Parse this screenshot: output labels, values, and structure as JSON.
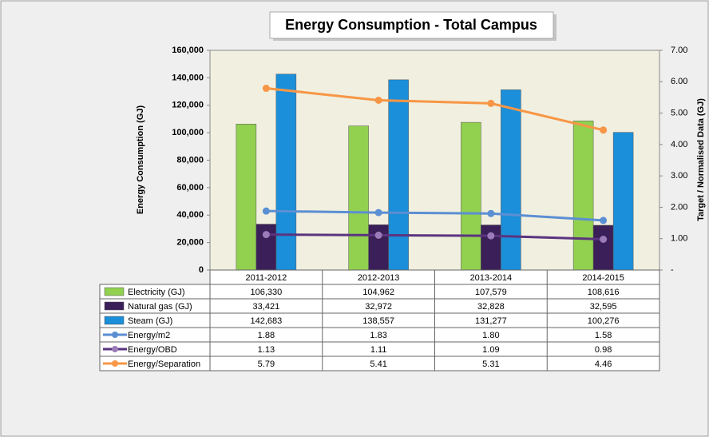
{
  "chart_data": {
    "type": "bar",
    "title": "Energy Consumption - Total Campus",
    "y_label": "Energy Consumption (GJ)",
    "y2_label": "Target / Normalised Data (GJ)",
    "categories": [
      "2011-2012",
      "2012-2013",
      "2013-2014",
      "2014-2015"
    ],
    "ylim": [
      0,
      160000
    ],
    "yticks": [
      0,
      {
        "value": 20000,
        "label": "20,000"
      },
      {
        "value": 40000,
        "label": "40,000"
      },
      {
        "value": 60000,
        "label": "60,000"
      },
      {
        "value": 80000,
        "label": "80,000"
      },
      {
        "value": 100000,
        "label": "100,000"
      },
      {
        "value": 120000,
        "label": "120,000"
      },
      {
        "value": 140000,
        "label": "140,000"
      },
      {
        "value": 160000,
        "label": "160,000"
      }
    ],
    "y2lim": [
      0,
      7
    ],
    "y2ticks": [
      {
        "value": 0,
        "label": "-"
      },
      {
        "value": 1,
        "label": "1.00"
      },
      {
        "value": 2,
        "label": "2.00"
      },
      {
        "value": 3,
        "label": "3.00"
      },
      {
        "value": 4,
        "label": "4.00"
      },
      {
        "value": 5,
        "label": "5.00"
      },
      {
        "value": 6,
        "label": "6.00"
      },
      {
        "value": 7,
        "label": "7.00"
      }
    ],
    "grid": false,
    "series": [
      {
        "name": "Electricity (GJ)",
        "type": "bar",
        "color": "#92d050",
        "values": [
          106330,
          104962,
          107579,
          108616
        ],
        "value_labels": [
          "106,330",
          "104,962",
          "107,579",
          "108,616"
        ]
      },
      {
        "name": "Natural gas (GJ)",
        "type": "bar",
        "color": "#3b1f58",
        "values": [
          33421,
          32972,
          32828,
          32595
        ],
        "value_labels": [
          "33,421",
          "32,972",
          "32,828",
          "32,595"
        ]
      },
      {
        "name": "Steam (GJ)",
        "type": "bar",
        "color": "#1b8fd9",
        "values": [
          142683,
          138557,
          131277,
          100276
        ],
        "value_labels": [
          "142,683",
          "138,557",
          "131,277",
          "100,276"
        ]
      },
      {
        "name": "Energy/m2",
        "type": "line",
        "axis": "y2",
        "color": "#5b8fd3",
        "values": [
          1.88,
          1.83,
          1.8,
          1.58
        ],
        "value_labels": [
          "1.88",
          "1.83",
          "1.80",
          "1.58"
        ]
      },
      {
        "name": "Energy/OBD",
        "type": "line",
        "axis": "y2",
        "color": "#5b3480",
        "marker_color": "#9b7bb8",
        "values": [
          1.13,
          1.11,
          1.09,
          0.98
        ],
        "value_labels": [
          "1.13",
          "1.11",
          "1.09",
          "0.98"
        ]
      },
      {
        "name": "Energy/Separation",
        "type": "line",
        "axis": "y2",
        "color": "#f79646",
        "values": [
          5.79,
          5.41,
          5.31,
          4.46
        ],
        "value_labels": [
          "5.79",
          "5.41",
          "5.31",
          "4.46"
        ]
      }
    ]
  }
}
